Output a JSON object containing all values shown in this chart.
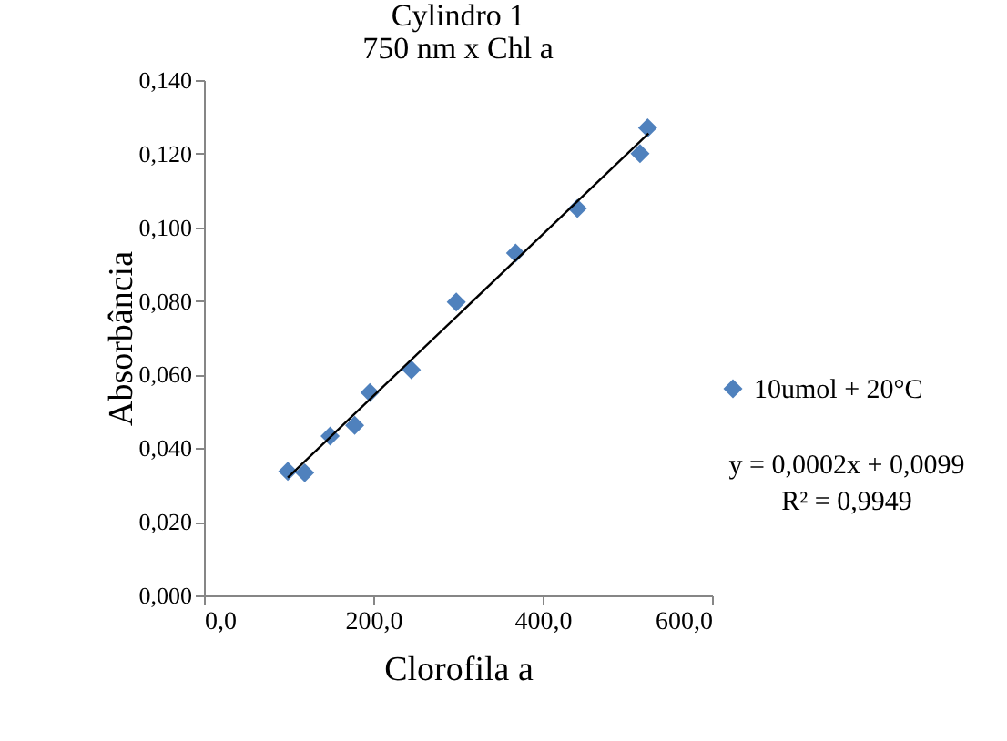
{
  "chart_data": {
    "type": "scatter",
    "title": "Cylindro 1",
    "subtitle": "750 nm x Chl a",
    "xlabel": "Clorofila a",
    "ylabel": "Absorbância",
    "xlim": [
      0,
      600
    ],
    "xticks": [
      {
        "value": 0,
        "label": "0,0"
      },
      {
        "value": 200,
        "label": "200,0"
      },
      {
        "value": 400,
        "label": "400,0"
      },
      {
        "value": 600,
        "label": "600,0"
      }
    ],
    "ylim": [
      0,
      0.14
    ],
    "yticks": [
      {
        "value": 0,
        "label": "0,000"
      },
      {
        "value": 0.02,
        "label": "0,020"
      },
      {
        "value": 0.04,
        "label": "0,040"
      },
      {
        "value": 0.06,
        "label": "0,060"
      },
      {
        "value": 0.08,
        "label": "0,080"
      },
      {
        "value": 0.1,
        "label": "0,100"
      },
      {
        "value": 0.12,
        "label": "0,120"
      },
      {
        "value": 0.14,
        "label": "0,140"
      }
    ],
    "marker": "diamond",
    "legend": "right",
    "annotations": [
      "y = 0,0002x + 0,0099",
      "R² = 0,9949"
    ],
    "series": [
      {
        "name": "10umol + 20°C",
        "color": "#4f81bd",
        "x": [
          99,
          119,
          149,
          178,
          196,
          245,
          298,
          368,
          441,
          515,
          524
        ],
        "values": [
          0.0337,
          0.0333,
          0.0433,
          0.0462,
          0.0551,
          0.0613,
          0.0797,
          0.093,
          0.1051,
          0.12,
          0.127
        ]
      },
      {
        "type": "line",
        "marker": "none",
        "color": "#000000",
        "x": [
          99,
          525
        ],
        "values": [
          0.032,
          0.1255
        ]
      }
    ]
  }
}
